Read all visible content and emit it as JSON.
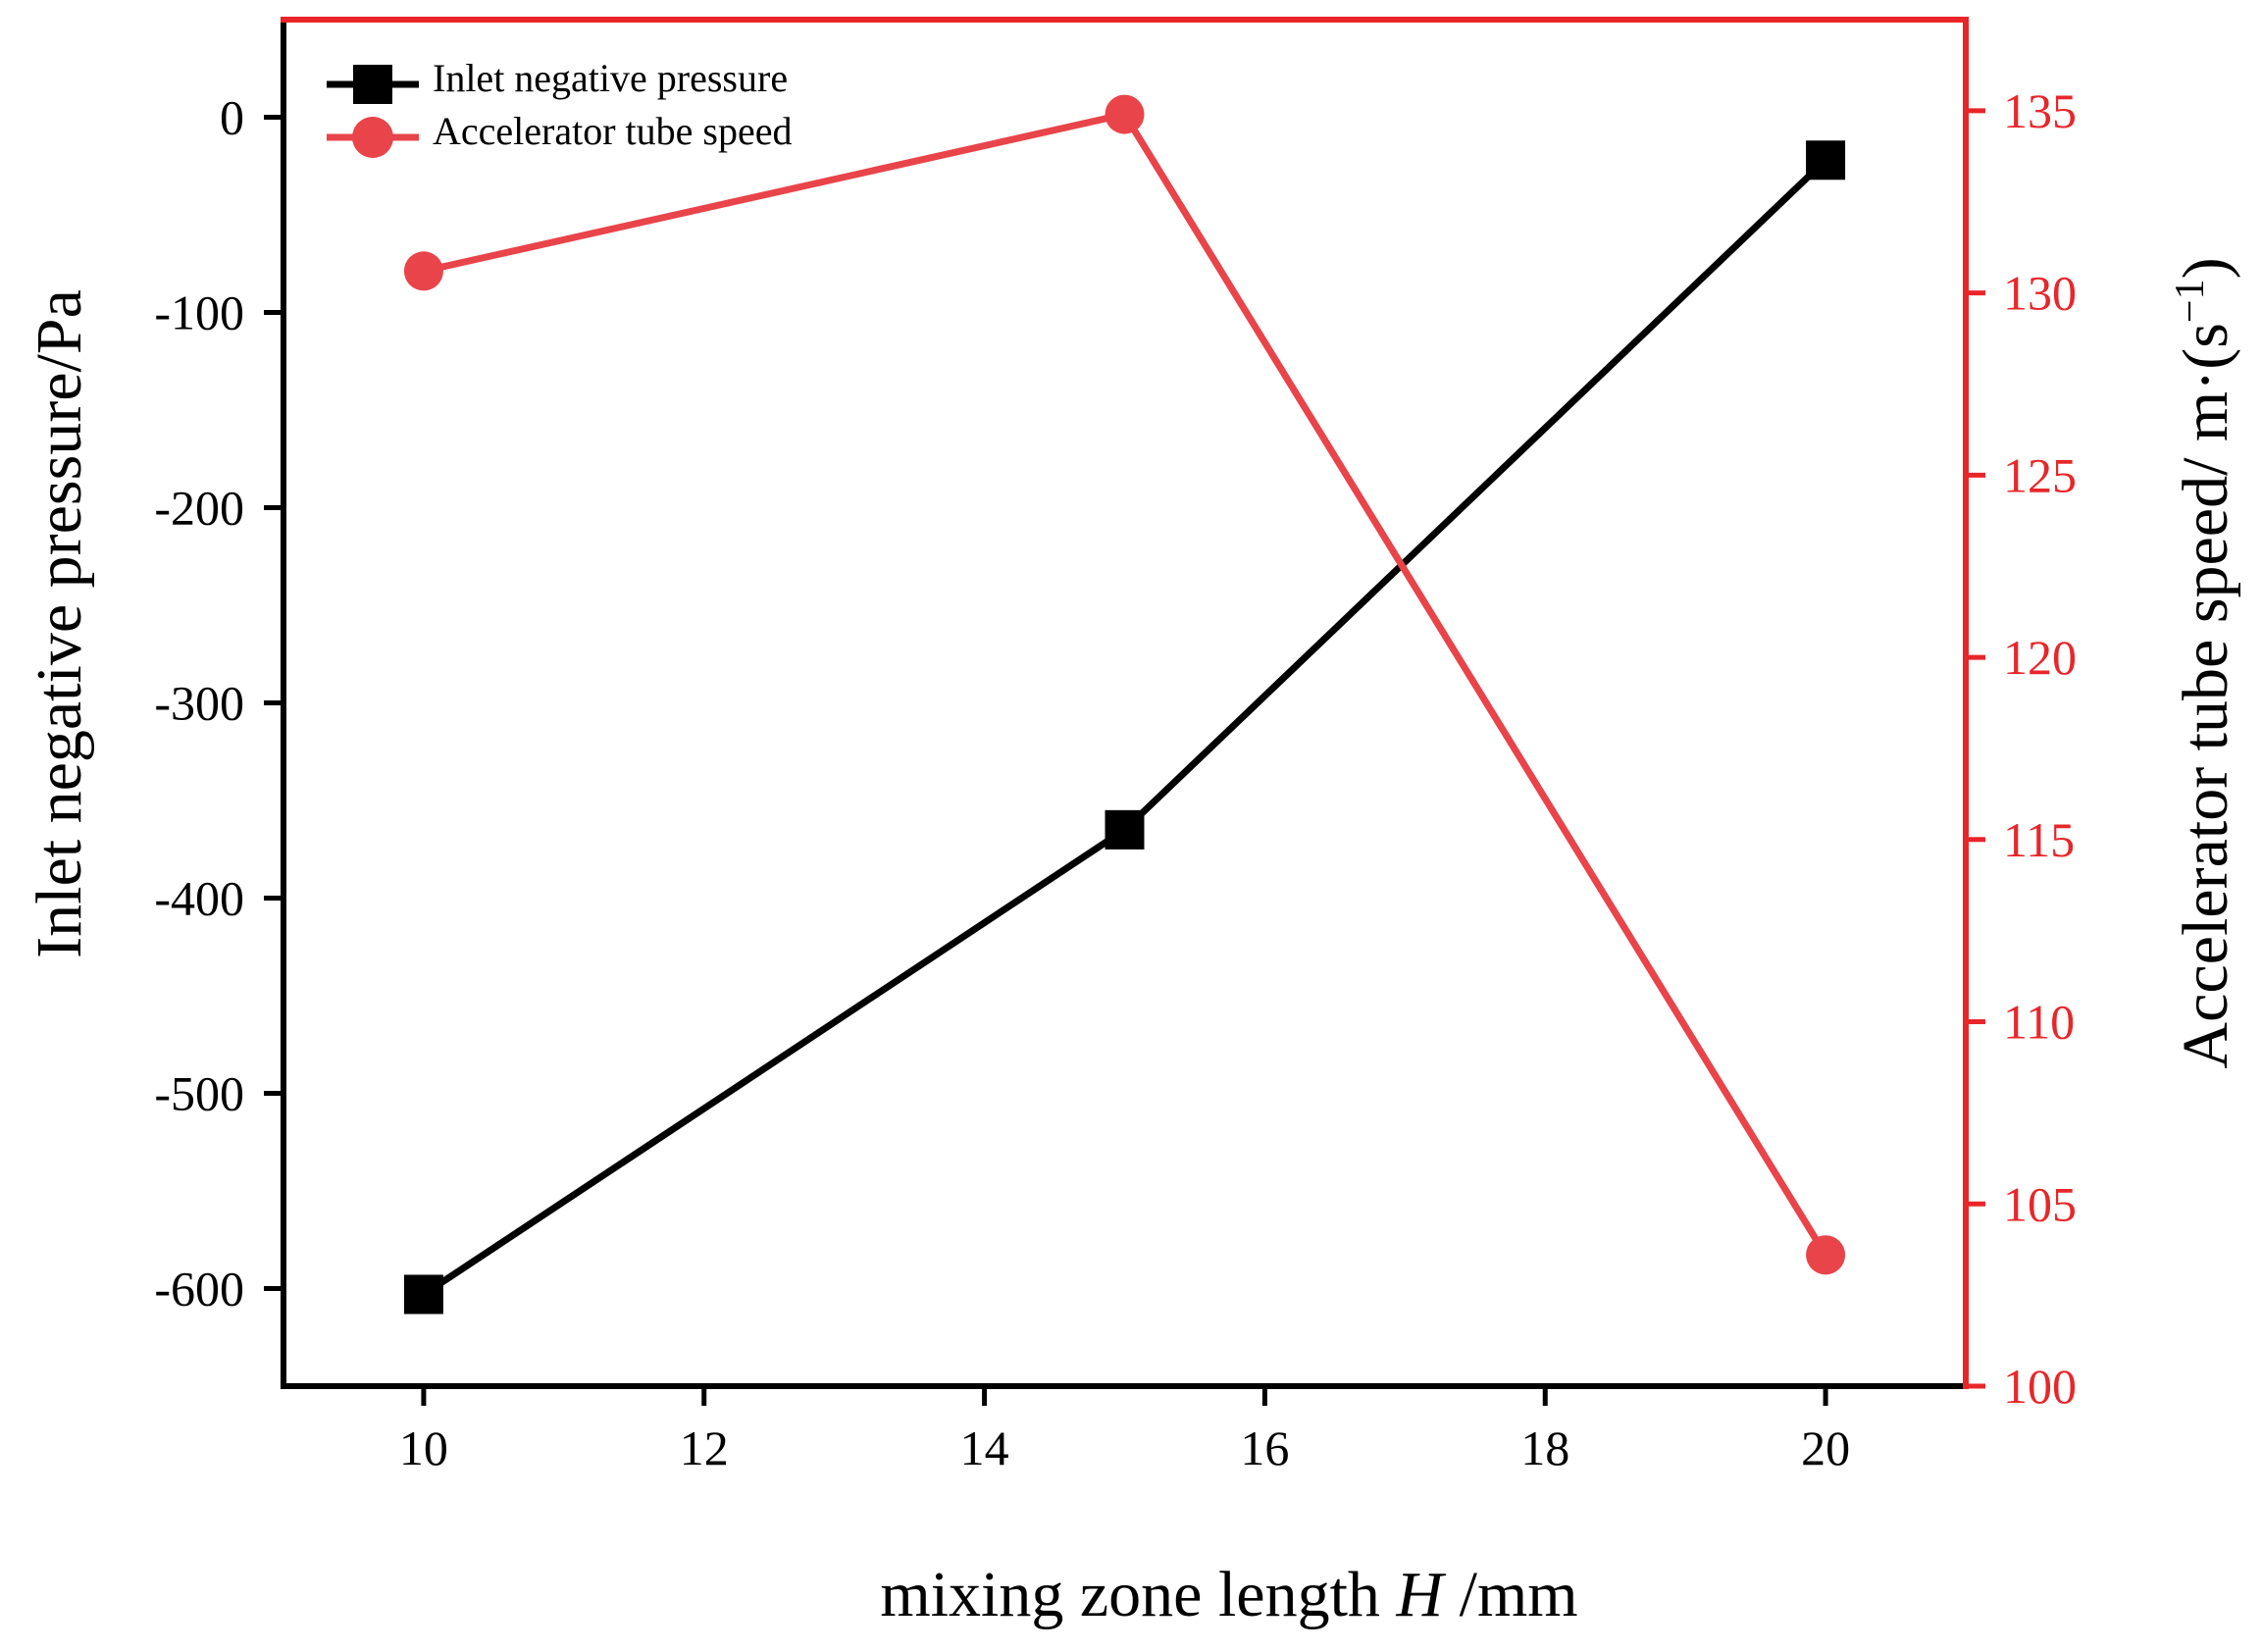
{
  "chart_data": {
    "type": "line",
    "x": [
      10,
      15,
      20
    ],
    "xlabel": {
      "prefix": "mixing zone length ",
      "var": "H",
      "suffix": " /mm"
    },
    "xlim": [
      9,
      21
    ],
    "xticks": [
      10,
      12,
      14,
      16,
      18,
      20
    ],
    "left_axis": {
      "label": "Inlet negative pressure/Pa",
      "ylim": [
        -650,
        50
      ],
      "ticks": [
        0,
        -100,
        -200,
        -300,
        -400,
        -500,
        -600
      ]
    },
    "right_axis": {
      "label_main": "Accelerator tube speed/ m·(s",
      "label_sup": "−1",
      "label_close": ")",
      "ylim": [
        100,
        137.5
      ],
      "ticks": [
        100,
        105,
        110,
        115,
        120,
        125,
        130,
        135
      ],
      "color": "#e8262a"
    },
    "series": [
      {
        "name": "Inlet negative pressure",
        "axis": "left",
        "marker": "square",
        "color": "#000000",
        "values": [
          -603,
          -365,
          -22
        ]
      },
      {
        "name": "Accelerator tube speed",
        "axis": "right",
        "marker": "circle",
        "color": "#e8444a",
        "values": [
          130.6,
          134.9,
          103.6
        ]
      }
    ]
  }
}
